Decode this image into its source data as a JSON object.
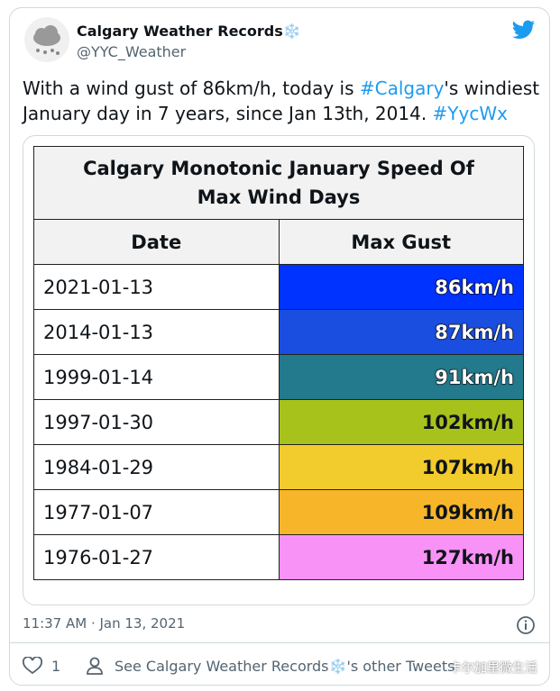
{
  "tweet": {
    "name": "Calgary Weather Records❄️",
    "handle": "@YYC_Weather",
    "text": [
      {
        "t": "With a wind gust of 86km/h, today is "
      },
      {
        "t": "#Calgary",
        "link": true
      },
      {
        "t": "'s windiest January day in 7 years, since Jan 13th, 2014. "
      },
      {
        "t": "#YycWx",
        "link": true
      }
    ],
    "timestamp": "11:37 AM · Jan 13, 2021",
    "likes": "1",
    "other_tweets": "See Calgary Weather Records❄️'s other Tweets",
    "watermark": "卡尔加里微生活"
  },
  "table": {
    "title": "Calgary Monotonic January Speed Of Max Wind Days",
    "headers": [
      "Date",
      "Max Gust"
    ],
    "rows": [
      [
        "2021-01-13",
        "86km/h"
      ],
      [
        "2014-01-13",
        "87km/h"
      ],
      [
        "1999-01-14",
        "91km/h"
      ],
      [
        "1997-01-30",
        "102km/h"
      ],
      [
        "1984-01-29",
        "107km/h"
      ],
      [
        "1977-01-07",
        "109km/h"
      ],
      [
        "1976-01-27",
        "127km/h"
      ]
    ],
    "colors": [
      "#0033ff",
      "#1a4ee0",
      "#237a8c",
      "#a8c21c",
      "#f2cb2c",
      "#f7b62a",
      "#f992f6"
    ],
    "outlined": [
      true,
      true,
      true,
      false,
      false,
      false,
      false
    ]
  }
}
